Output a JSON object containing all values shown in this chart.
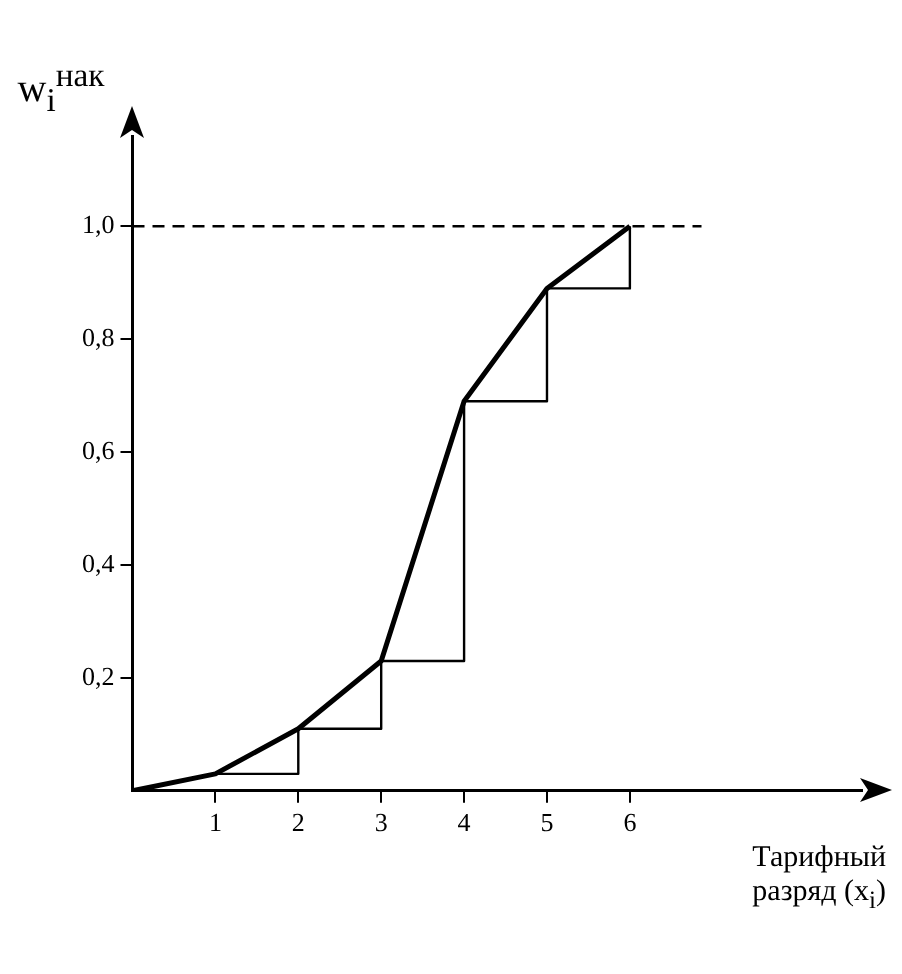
{
  "chart_data": {
    "type": "line",
    "ylabel": "w$_{i}$$^{нак}$",
    "xlabel": "Тарифный разряд (x$_{i}$)",
    "xlim": [
      0,
      8.8
    ],
    "xticks": [
      1,
      2,
      3,
      4,
      5,
      6
    ],
    "ylim": [
      0,
      1.16
    ],
    "yticks": [
      {
        "value": 0.2,
        "label": "0,2"
      },
      {
        "value": 0.4,
        "label": "0,4"
      },
      {
        "value": 0.6,
        "label": "0,6"
      },
      {
        "value": 0.8,
        "label": "0,8"
      },
      {
        "value": 1.0,
        "label": "1,0"
      }
    ],
    "series": [
      {
        "type": "line",
        "color": "#000000",
        "x": [
          0,
          1,
          2,
          3,
          4,
          5,
          6
        ],
        "values": [
          0,
          0.03,
          0.11,
          0.23,
          0.69,
          0.89,
          1.0
        ]
      },
      {
        "type": "step",
        "color": "#000000",
        "x": [
          1,
          2,
          3,
          4,
          5,
          6
        ],
        "values": [
          0.03,
          0.11,
          0.23,
          0.69,
          0.89,
          1.0
        ]
      }
    ],
    "ref_lines": [
      {
        "axis": "y",
        "value": 1.0,
        "line_style": "dashed",
        "color": "#000000"
      }
    ]
  }
}
